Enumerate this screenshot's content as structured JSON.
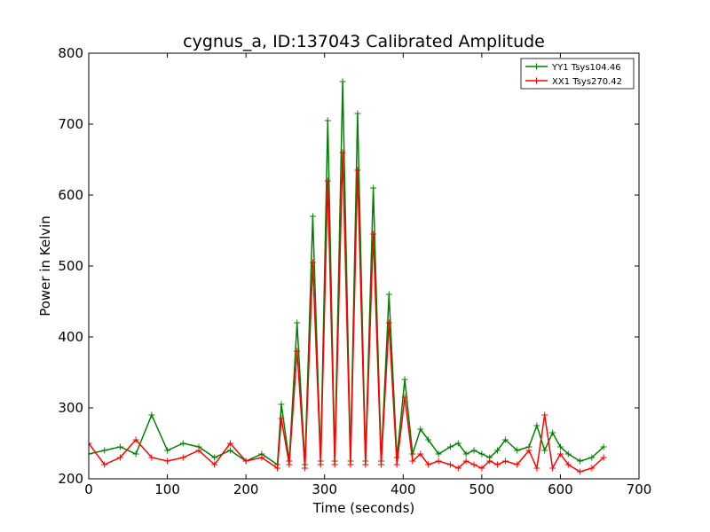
{
  "chart_data": {
    "type": "line",
    "title": "cygnus_a, ID:137043 Calibrated Amplitude",
    "xlabel": "Time (seconds)",
    "ylabel": "Power in Kelvin",
    "xlim": [
      0,
      700
    ],
    "ylim": [
      200,
      800
    ],
    "xticks": [
      "0",
      "100",
      "200",
      "300",
      "400",
      "500",
      "600",
      "700"
    ],
    "yticks": [
      "200",
      "300",
      "400",
      "500",
      "600",
      "700",
      "800"
    ],
    "grid": false,
    "legend_position": "top-right",
    "marker": "+",
    "series": [
      {
        "name": "YY1 Tsys104.46",
        "color": "#008000",
        "x": [
          0,
          20,
          40,
          60,
          80,
          100,
          120,
          140,
          160,
          180,
          200,
          220,
          240,
          245,
          255,
          265,
          275,
          285,
          295,
          304,
          313,
          323,
          333,
          342,
          352,
          362,
          372,
          382,
          392,
          402,
          412,
          422,
          432,
          445,
          460,
          470,
          480,
          490,
          500,
          510,
          520,
          530,
          545,
          560,
          570,
          580,
          590,
          600,
          610,
          625,
          640,
          655
        ],
        "y": [
          235,
          240,
          245,
          235,
          290,
          240,
          250,
          245,
          230,
          240,
          225,
          235,
          220,
          305,
          225,
          420,
          220,
          570,
          225,
          705,
          225,
          760,
          225,
          715,
          225,
          610,
          225,
          460,
          230,
          340,
          235,
          270,
          255,
          235,
          245,
          250,
          235,
          240,
          235,
          230,
          240,
          255,
          240,
          245,
          275,
          240,
          265,
          245,
          235,
          225,
          230,
          245
        ]
      },
      {
        "name": "XX1 Tsys270.42",
        "color": "#ff0000",
        "x": [
          0,
          20,
          40,
          60,
          80,
          100,
          120,
          140,
          160,
          180,
          200,
          220,
          240,
          245,
          255,
          265,
          275,
          285,
          295,
          304,
          313,
          323,
          333,
          342,
          352,
          362,
          372,
          382,
          392,
          402,
          412,
          422,
          432,
          445,
          460,
          470,
          480,
          490,
          500,
          510,
          520,
          530,
          545,
          560,
          570,
          580,
          590,
          600,
          610,
          625,
          640,
          655
        ],
        "y": [
          250,
          220,
          230,
          255,
          230,
          225,
          230,
          240,
          220,
          250,
          225,
          230,
          215,
          285,
          220,
          380,
          215,
          505,
          220,
          620,
          220,
          660,
          220,
          635,
          220,
          545,
          220,
          420,
          220,
          315,
          225,
          235,
          220,
          225,
          220,
          215,
          225,
          220,
          215,
          225,
          220,
          225,
          220,
          240,
          215,
          290,
          215,
          235,
          220,
          210,
          215,
          230
        ]
      }
    ]
  }
}
